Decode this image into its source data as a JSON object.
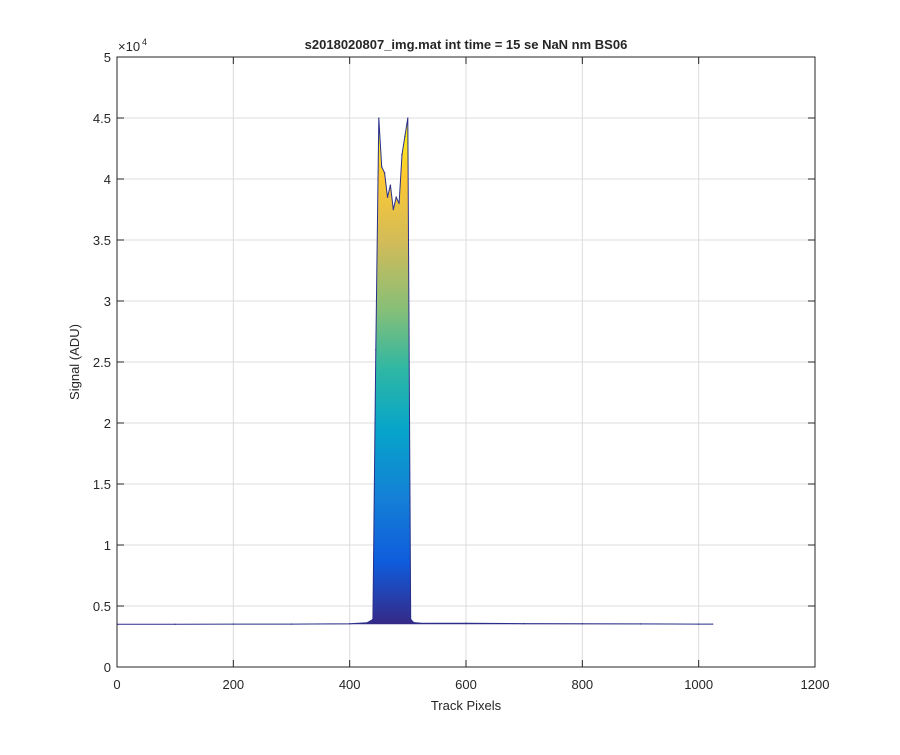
{
  "chart_data": {
    "type": "area",
    "title": "s2018020807_img.mat int time = 15 se  NaN nm BS06",
    "xlabel": "Track Pixels",
    "ylabel": "Signal (ADU)",
    "xlim": [
      0,
      1200
    ],
    "ylim": [
      0,
      50000
    ],
    "xticks": [
      0,
      200,
      400,
      600,
      800,
      1000,
      1200
    ],
    "yticks": [
      0,
      5000,
      10000,
      15000,
      20000,
      25000,
      30000,
      35000,
      40000,
      45000,
      50000
    ],
    "xtick_labels": [
      "0",
      "200",
      "400",
      "600",
      "800",
      "1000",
      "1200"
    ],
    "ytick_labels": [
      "0",
      "0.5",
      "1",
      "1.5",
      "2",
      "2.5",
      "3",
      "3.5",
      "4",
      "4.5",
      "5"
    ],
    "y_exponent_label": "×10",
    "y_exponent_power": "4",
    "grid": true,
    "colormap": "parula",
    "series": [
      {
        "x": [
          1,
          100,
          200,
          300,
          400,
          430,
          440,
          445,
          450,
          455,
          460,
          465,
          470,
          475,
          480,
          485,
          490,
          495,
          500,
          505,
          510,
          520,
          600,
          700,
          800,
          900,
          1000,
          1024
        ],
        "y": [
          3500,
          3500,
          3520,
          3520,
          3550,
          3620,
          3900,
          26000,
          45000,
          41000,
          40500,
          38500,
          39500,
          37500,
          38500,
          38000,
          42000,
          43500,
          45000,
          3900,
          3650,
          3600,
          3580,
          3560,
          3540,
          3530,
          3520,
          3520
        ]
      }
    ]
  }
}
